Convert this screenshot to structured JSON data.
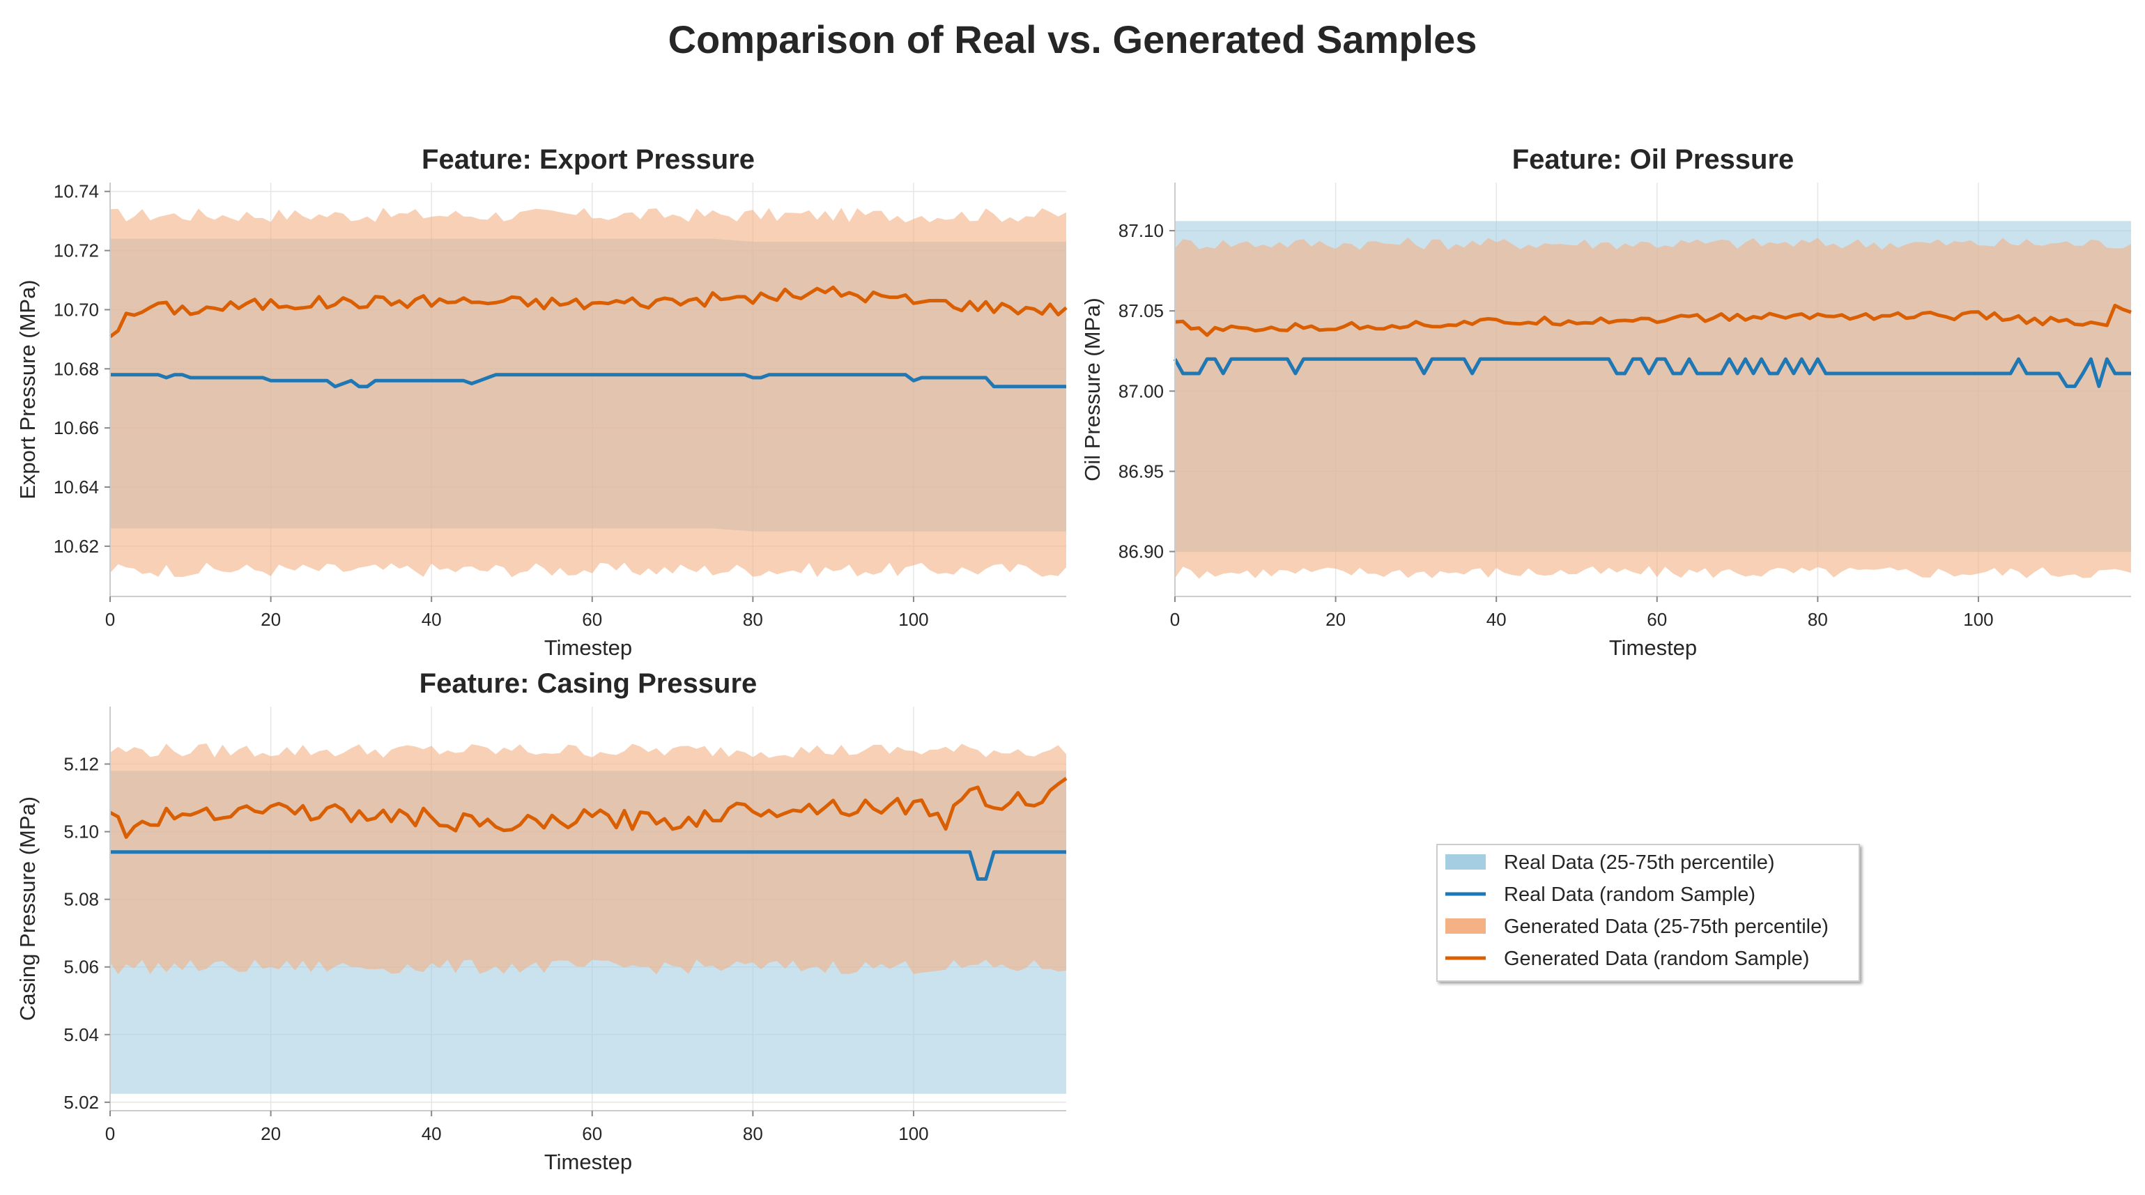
{
  "figure_title": "Comparison of Real vs. Generated Samples",
  "colors": {
    "real_band": "#a6cee3",
    "real_line": "#1f77b4",
    "gen_band": "#f4b183",
    "gen_line": "#d95f02",
    "grid": "#e6e6e6",
    "axis": "#cccccc",
    "text": "#262626"
  },
  "legend": {
    "placement": "lower-right (empty fourth panel)",
    "entries": [
      {
        "label": "Real Data (25-75th percentile)",
        "kind": "band",
        "series": "real"
      },
      {
        "label": "Real Data (random Sample)",
        "kind": "line",
        "series": "real"
      },
      {
        "label": "Generated Data (25-75th percentile)",
        "kind": "band",
        "series": "gen"
      },
      {
        "label": "Generated Data (random Sample)",
        "kind": "line",
        "series": "gen"
      }
    ]
  },
  "chart_data": [
    {
      "type": "line",
      "title": "Feature: Export Pressure",
      "xlabel": "Timestep",
      "ylabel": "Export Pressure (MPa)",
      "xlim": [
        0,
        119
      ],
      "ylim": [
        10.603,
        10.743
      ],
      "xticks": [
        0,
        20,
        40,
        60,
        80,
        100
      ],
      "xtick_labels": [
        "0",
        "20",
        "40",
        "60",
        "80",
        "100"
      ],
      "yticks": [
        10.62,
        10.64,
        10.66,
        10.68,
        10.7,
        10.72,
        10.74
      ],
      "ytick_labels": [
        "10.62",
        "10.64",
        "10.66",
        "10.68",
        "10.70",
        "10.72",
        "10.74"
      ],
      "grid": true,
      "series": {
        "real_band": {
          "knots_x": [
            0,
            75,
            80,
            119
          ],
          "lower": [
            10.626,
            10.626,
            10.625,
            10.625
          ],
          "upper": [
            10.724,
            10.724,
            10.723,
            10.723
          ]
        },
        "real_sample": {
          "knots_x": [
            0,
            6,
            7,
            8,
            9,
            10,
            19,
            20,
            27,
            28,
            30,
            31,
            32,
            33,
            44,
            45,
            46,
            47,
            48,
            79,
            80,
            81,
            82,
            99,
            100,
            101,
            109,
            110,
            119
          ],
          "values": [
            10.678,
            10.678,
            10.677,
            10.678,
            10.678,
            10.677,
            10.677,
            10.676,
            10.676,
            10.674,
            10.676,
            10.674,
            10.674,
            10.676,
            10.676,
            10.675,
            10.676,
            10.677,
            10.678,
            10.678,
            10.677,
            10.677,
            10.678,
            10.678,
            10.676,
            10.677,
            10.677,
            10.674,
            10.674
          ]
        },
        "gen_band": {
          "lower_base": 10.612,
          "upper_base": 10.732,
          "noise": 0.0025
        },
        "gen_sample": {
          "knots_x": [
            0,
            2,
            5,
            10,
            20,
            40,
            60,
            80,
            90,
            100,
            110,
            119
          ],
          "values": [
            10.692,
            10.697,
            10.701,
            10.7,
            10.702,
            10.703,
            10.702,
            10.704,
            10.706,
            10.703,
            10.701,
            10.7
          ],
          "noise": 0.0022
        }
      }
    },
    {
      "type": "line",
      "title": "Feature: Oil Pressure",
      "xlabel": "Timestep",
      "ylabel": "Oil Pressure (MPa)",
      "xlim": [
        0,
        119
      ],
      "ylim": [
        86.872,
        87.13
      ],
      "xticks": [
        0,
        20,
        40,
        60,
        80,
        100
      ],
      "xtick_labels": [
        "0",
        "20",
        "40",
        "60",
        "80",
        "100"
      ],
      "yticks": [
        86.9,
        86.95,
        87.0,
        87.05,
        87.1
      ],
      "ytick_labels": [
        "86.90",
        "86.95",
        "87.00",
        "87.05",
        "87.10"
      ],
      "grid": true,
      "series": {
        "real_band": {
          "knots_x": [
            0,
            119
          ],
          "lower": [
            86.9,
            86.9
          ],
          "upper": [
            87.106,
            87.106
          ]
        },
        "real_sample": {
          "base": 87.02,
          "dips": [
            1,
            2,
            3,
            6,
            15,
            31,
            37,
            55,
            56,
            59,
            62,
            63,
            65,
            66,
            67,
            68,
            70,
            72,
            74,
            75,
            77,
            79,
            81,
            82,
            83,
            84,
            85,
            86,
            87,
            88,
            89,
            90,
            91,
            92,
            93,
            94,
            95,
            96,
            97,
            98,
            99,
            100,
            101,
            102,
            103,
            104,
            106,
            107,
            108,
            109,
            110,
            111,
            113,
            117,
            118,
            119
          ],
          "dip_value": 87.011,
          "low": {
            "x": [
              111,
              112,
              115
            ],
            "value": 87.003
          }
        },
        "gen_band": {
          "lower_base": 86.887,
          "upper_base": 87.092,
          "noise": 0.004
        },
        "gen_sample": {
          "knots_x": [
            0,
            3,
            10,
            20,
            40,
            60,
            80,
            100,
            110,
            116,
            117,
            119
          ],
          "values": [
            87.043,
            87.037,
            87.039,
            87.04,
            87.043,
            87.045,
            87.047,
            87.047,
            87.043,
            87.04,
            87.054,
            87.048
          ],
          "noise": 0.0025
        }
      }
    },
    {
      "type": "line",
      "title": "Feature: Casing Pressure",
      "xlabel": "Timestep",
      "ylabel": "Casing Pressure (MPa)",
      "xlim": [
        0,
        119
      ],
      "ylim": [
        5.0175,
        5.137
      ],
      "xticks": [
        0,
        20,
        40,
        60,
        80,
        100
      ],
      "xtick_labels": [
        "0",
        "20",
        "40",
        "60",
        "80",
        "100"
      ],
      "yticks": [
        5.02,
        5.04,
        5.06,
        5.08,
        5.1,
        5.12
      ],
      "ytick_labels": [
        "5.02",
        "5.04",
        "5.06",
        "5.08",
        "5.10",
        "5.12"
      ],
      "grid": true,
      "series": {
        "real_band": {
          "knots_x": [
            0,
            119
          ],
          "lower": [
            5.0225,
            5.0225
          ],
          "upper": [
            5.118,
            5.118
          ]
        },
        "real_sample": {
          "knots_x": [
            0,
            107,
            108,
            109,
            110,
            119
          ],
          "values": [
            5.094,
            5.094,
            5.086,
            5.086,
            5.094,
            5.094
          ]
        },
        "gen_band": {
          "lower_base": 5.06,
          "upper_base": 5.124,
          "noise": 0.0022
        },
        "gen_sample": {
          "knots_x": [
            0,
            2,
            10,
            20,
            30,
            40,
            48,
            60,
            70,
            80,
            100,
            104,
            106,
            110,
            117,
            119
          ],
          "values": [
            5.104,
            5.101,
            5.106,
            5.107,
            5.105,
            5.104,
            5.101,
            5.104,
            5.103,
            5.107,
            5.108,
            5.103,
            5.112,
            5.109,
            5.11,
            5.114
          ],
          "noise": 0.0028
        }
      }
    }
  ]
}
